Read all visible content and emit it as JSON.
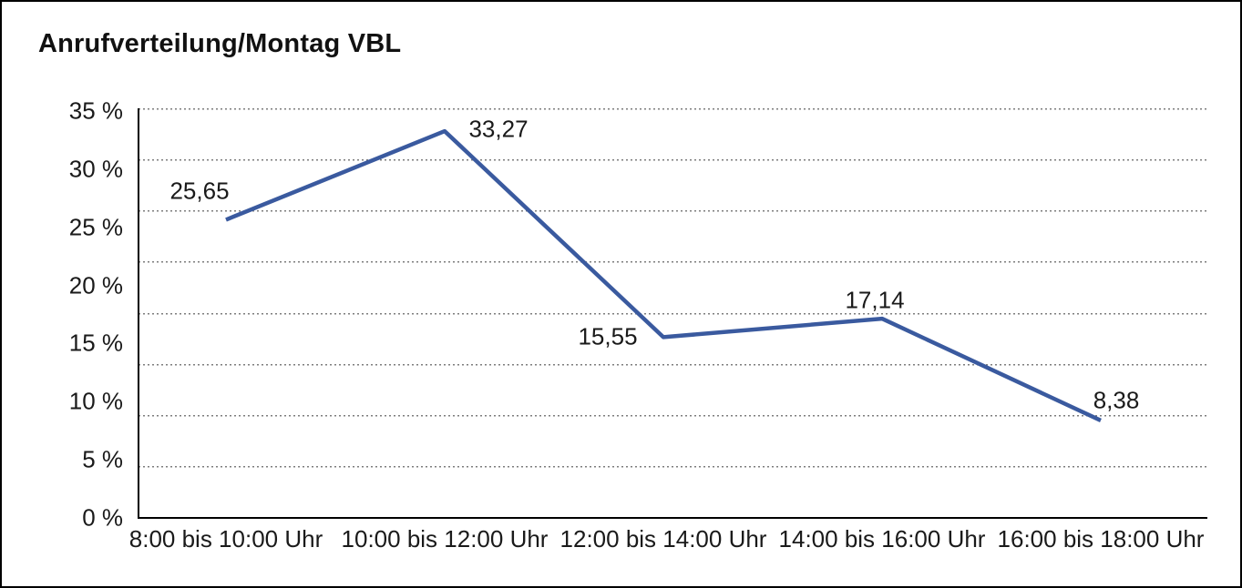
{
  "title": "Anrufverteilung/Montag VBL",
  "chart_data": {
    "type": "line",
    "title": "Anrufverteilung/Montag VBL",
    "categories": [
      "8:00 bis 10:00 Uhr",
      "10:00 bis 12:00 Uhr",
      "12:00 bis 14:00 Uhr",
      "14:00 bis 16:00 Uhr",
      "16:00 bis 18:00 Uhr"
    ],
    "values": [
      25.65,
      33.27,
      15.55,
      17.14,
      8.38
    ],
    "point_labels": [
      "25,65",
      "33,27",
      "15,55",
      "17,14",
      "8,38"
    ],
    "xlabel": "",
    "ylabel": "",
    "ylim": [
      0,
      35
    ],
    "y_ticks": [
      "35 %",
      "30 %",
      "25 %",
      "20 %",
      "15 %",
      "10 %",
      "5 %",
      "0 %"
    ],
    "grid": "horizontal-dotted",
    "legend": "none"
  },
  "colors": {
    "line": "#3A5A9F",
    "grid": "#7d7d7d",
    "axis": "#000000",
    "border": "#000000",
    "background": "#ffffff",
    "text": "#1a1a1a"
  }
}
